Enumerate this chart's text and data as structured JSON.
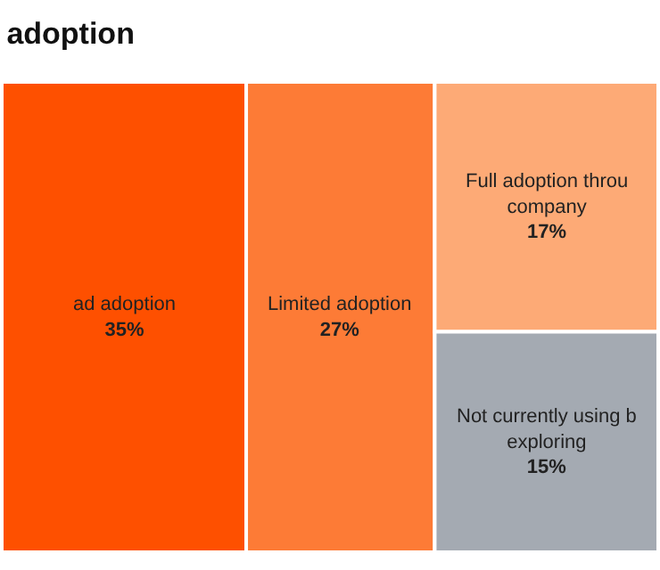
{
  "chart_data": {
    "type": "other",
    "title": "adoption",
    "categories": [
      "ad adoption",
      "Limited adoption",
      "Full adoption throu\ncompany",
      "Not currently using b\nexploring"
    ],
    "values": [
      35,
      27,
      17,
      15
    ],
    "value_labels": [
      "35%",
      "27%",
      "17%",
      "15%"
    ],
    "colors": [
      "#fe5000",
      "#fd7b36",
      "#fdaa76",
      "#a4aab2"
    ]
  }
}
